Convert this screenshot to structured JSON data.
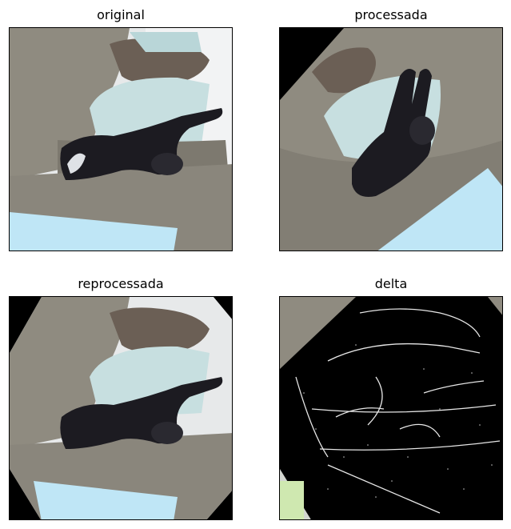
{
  "figure": {
    "panels": [
      {
        "id": "original",
        "title": "original"
      },
      {
        "id": "processada",
        "title": "processada"
      },
      {
        "id": "reprocessada",
        "title": "reprocessada"
      },
      {
        "id": "delta",
        "title": "delta"
      }
    ]
  },
  "colors": {
    "sofa": "#8f8b80",
    "sofa_dark": "#6f6c63",
    "pillow": "#c7dfe0",
    "brown_pillow": "#6b5f55",
    "cat": "#1c1b21",
    "floor_light": "#bfe6f6",
    "background": "#000000"
  }
}
